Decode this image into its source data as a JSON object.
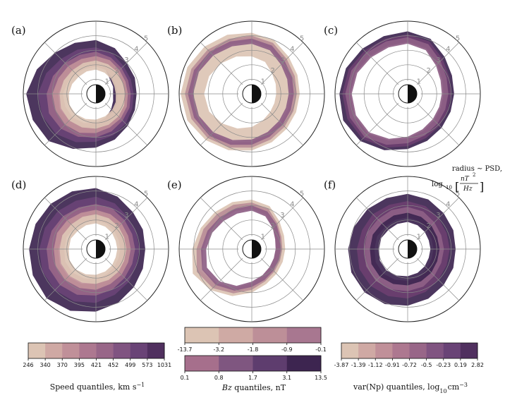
{
  "chart_data": [
    {
      "type": "polar-contour",
      "panel_label": "(a)",
      "colorbar": "speed",
      "rlim": [
        0,
        5
      ],
      "r_ticks": [
        "0",
        "1",
        "2",
        "3",
        "4",
        "5"
      ],
      "levels": [
        {
          "r": [
            3.7,
            3.4,
            3.0,
            2.9,
            2.8,
            2.9,
            3.1,
            3.4,
            3.7,
            4.1,
            4.6,
            4.7,
            4.8,
            4.4,
            4.0,
            3.8
          ],
          "width": 0.9
        },
        {
          "r": [
            3.2,
            3.0,
            2.7,
            2.6,
            2.6,
            2.7,
            2.9,
            3.1,
            3.3,
            3.6,
            3.9,
            4.0,
            4.0,
            3.7,
            3.4,
            3.3
          ],
          "width": 0.6
        },
        {
          "r": [
            2.9,
            2.7,
            2.5,
            2.4,
            2.4,
            2.5,
            2.6,
            2.8,
            3.0,
            3.2,
            3.4,
            3.5,
            3.4,
            3.2,
            3.0,
            2.9
          ],
          "width": 0.45
        },
        {
          "r": [
            2.6,
            2.5,
            2.3,
            2.2,
            2.2,
            2.3,
            2.4,
            2.5,
            2.7,
            2.9,
            3.0,
            3.0,
            3.0,
            2.8,
            2.7,
            2.6
          ],
          "width": 0.4
        },
        {
          "r": [
            2.3,
            2.2,
            2.1,
            2.0,
            2.0,
            2.1,
            2.2,
            2.3,
            2.4,
            2.5,
            2.6,
            2.6,
            2.5,
            2.4,
            2.3,
            2.3
          ],
          "width": 0.35
        }
      ]
    },
    {
      "type": "polar-contour",
      "panel_label": "(b)",
      "colorbar": "bz",
      "rlim": [
        0,
        5
      ],
      "r_ticks": [
        "0",
        "1",
        "2",
        "3",
        "4",
        "5"
      ],
      "levels": [
        {
          "r": [
            4.2,
            4.0,
            3.6,
            3.4,
            3.3,
            3.3,
            3.4,
            3.6,
            3.9,
            4.2,
            4.5,
            4.8,
            4.9,
            4.8,
            4.6,
            4.4
          ],
          "width": 0.9
        },
        {
          "r": [
            4.0,
            3.8,
            3.4,
            3.2,
            3.1,
            3.1,
            3.2,
            3.4,
            3.7,
            4.0,
            4.3,
            4.5,
            4.6,
            4.5,
            4.3,
            4.1
          ],
          "width": 0.22
        },
        {
          "r": [
            3.8,
            3.6,
            3.2,
            3.0,
            2.9,
            2.9,
            3.0,
            3.2,
            3.5,
            3.8,
            4.1,
            4.3,
            4.4,
            4.3,
            4.1,
            3.9
          ],
          "width": 0.2
        }
      ]
    },
    {
      "type": "polar-contour",
      "panel_label": "(c)",
      "colorbar": "var",
      "rlim": [
        0,
        5
      ],
      "r_ticks": [
        "0",
        "1",
        "2",
        "3",
        "4",
        "5"
      ],
      "levels": [
        {
          "r": [
            4.3,
            4.1,
            3.6,
            3.3,
            3.2,
            3.2,
            3.3,
            3.5,
            3.8,
            4.2,
            4.6,
            4.8,
            4.7,
            4.6,
            4.4,
            4.3
          ],
          "width": 0.35
        },
        {
          "r": [
            4.1,
            3.9,
            3.4,
            3.1,
            3.0,
            3.0,
            3.1,
            3.3,
            3.6,
            4.0,
            4.4,
            4.5,
            4.5,
            4.4,
            4.2,
            4.1
          ],
          "width": 0.3
        },
        {
          "r": [
            3.9,
            3.7,
            3.2,
            2.9,
            2.8,
            2.8,
            2.9,
            3.1,
            3.4,
            3.8,
            4.2,
            4.3,
            4.3,
            4.2,
            4.0,
            3.9
          ],
          "width": 0.25
        }
      ]
    },
    {
      "type": "polar-contour",
      "panel_label": "(d)",
      "colorbar": "speed",
      "rlim": [
        0,
        5
      ],
      "r_ticks": [
        "0",
        "1",
        "2",
        "3",
        "4",
        "5"
      ],
      "levels": [
        {
          "r": [
            4.2,
            3.9,
            3.6,
            3.5,
            3.4,
            3.5,
            3.7,
            4.0,
            4.3,
            4.6,
            4.8,
            4.7,
            4.6,
            4.5,
            4.4,
            4.3
          ],
          "width": 0.8
        },
        {
          "r": [
            3.6,
            3.4,
            3.1,
            3.0,
            3.0,
            3.0,
            3.2,
            3.4,
            3.7,
            3.9,
            4.0,
            4.0,
            3.9,
            3.8,
            3.7,
            3.6
          ],
          "width": 0.55
        },
        {
          "r": [
            3.1,
            3.0,
            2.8,
            2.7,
            2.7,
            2.7,
            2.8,
            3.0,
            3.2,
            3.4,
            3.5,
            3.5,
            3.4,
            3.3,
            3.2,
            3.1
          ],
          "width": 0.45
        },
        {
          "r": [
            2.7,
            2.6,
            2.5,
            2.4,
            2.4,
            2.4,
            2.5,
            2.6,
            2.8,
            2.9,
            3.0,
            3.0,
            2.9,
            2.9,
            2.8,
            2.7
          ],
          "width": 0.4
        },
        {
          "r": [
            2.4,
            2.3,
            2.2,
            2.1,
            2.1,
            2.1,
            2.2,
            2.3,
            2.4,
            2.5,
            2.6,
            2.6,
            2.5,
            2.5,
            2.4,
            2.4
          ],
          "width": 0.35
        }
      ]
    },
    {
      "type": "polar-contour",
      "panel_label": "(e)",
      "colorbar": "bz",
      "rlim": [
        0,
        5
      ],
      "r_ticks": [
        "0",
        "1",
        "2",
        "3",
        "4",
        "5"
      ],
      "levels": [
        {
          "r": [
            3.4,
            3.2,
            2.7,
            2.4,
            2.3,
            2.3,
            2.4,
            2.6,
            3.0,
            3.5,
            4.0,
            4.4,
            4.1,
            3.8,
            3.6,
            3.5
          ],
          "width": 0.3
        },
        {
          "r": [
            3.2,
            3.0,
            2.5,
            2.2,
            2.1,
            2.1,
            2.2,
            2.4,
            2.8,
            3.3,
            3.8,
            4.1,
            3.8,
            3.6,
            3.4,
            3.3
          ],
          "width": 0.25
        },
        {
          "r": [
            3.0,
            2.8,
            2.4,
            2.1,
            2.0,
            2.0,
            2.1,
            2.3,
            2.6,
            3.1,
            3.5,
            3.7,
            3.5,
            3.3,
            3.1,
            3.0
          ],
          "width": 0.2
        }
      ]
    },
    {
      "type": "polar-contour",
      "panel_label": "(f)",
      "colorbar": "var",
      "rlim": [
        0,
        5
      ],
      "r_ticks": [
        "0",
        "1",
        "2",
        "3",
        "4",
        "5"
      ],
      "levels": [
        {
          "r": [
            3.8,
            3.7,
            3.5,
            3.4,
            3.3,
            3.4,
            3.5,
            3.7,
            3.9,
            4.1,
            4.2,
            4.2,
            4.1,
            4.0,
            3.9,
            3.8
          ],
          "width": 0.7
        },
        {
          "r": [
            3.3,
            3.2,
            3.0,
            2.9,
            2.9,
            2.9,
            3.0,
            3.2,
            3.4,
            3.5,
            3.6,
            3.6,
            3.5,
            3.4,
            3.4,
            3.3
          ],
          "width": 0.5
        },
        {
          "r": [
            2.9,
            2.8,
            2.6,
            2.5,
            2.5,
            2.5,
            2.6,
            2.8,
            2.9,
            3.0,
            3.1,
            3.1,
            3.0,
            3.0,
            2.9,
            2.9
          ],
          "width": 0.4
        },
        {
          "r": [
            2.5,
            2.4,
            2.3,
            2.2,
            2.2,
            2.2,
            2.3,
            2.4,
            2.5,
            2.6,
            2.7,
            2.7,
            2.6,
            2.6,
            2.5,
            2.5
          ],
          "width": 0.35
        }
      ]
    }
  ],
  "colorbars": {
    "speed": {
      "ticks": [
        "246",
        "340",
        "370",
        "395",
        "421",
        "452",
        "499",
        "573",
        "1031"
      ],
      "colors": [
        "#dcc4b4",
        "#cfa9a4",
        "#c09099",
        "#ad7890",
        "#986688",
        "#805481",
        "#694376",
        "#50305f"
      ],
      "label": "Speed quantiles, km s",
      "label_sup": "−1"
    },
    "bz": {
      "top_ticks": [
        "-13.7",
        "-3.2",
        "-1.8",
        "-0.9",
        "-0.1"
      ],
      "top_colors": [
        "#dcc4b4",
        "#cfaaa4",
        "#bd8f98",
        "#a87790"
      ],
      "bottom_ticks": [
        "0.1",
        "0.8",
        "1.7",
        "3.1",
        "13.5"
      ],
      "bottom_colors": [
        "#a66f8c",
        "#7f5680",
        "#5e3d6e",
        "#3d2550"
      ],
      "label_var": "Bz",
      "label": " quantiles, nT"
    },
    "var": {
      "ticks": [
        "-3.87",
        "-1.39",
        "-1.12",
        "-0.91",
        "-0.72",
        "-0.5",
        "-0.23",
        "0.19",
        "2.82"
      ],
      "colors": [
        "#dcc4b4",
        "#cfa9a4",
        "#c09099",
        "#ad7890",
        "#986688",
        "#805481",
        "#694376",
        "#50305f"
      ],
      "label": "var(Np) quantiles, log",
      "label_sub": "10",
      "label_unit": "cm",
      "label_sup": "−3"
    }
  },
  "radius_note": {
    "line1": "radius ∼ PSD,",
    "log": "log",
    "sub": "10",
    "num": "nT",
    "num_sup": "2",
    "den": "Hz"
  },
  "colors": {
    "grid": "#8a8a8a",
    "fill_order_bz": [
      "#dcc4b4",
      "#b98d97",
      "#8e5f85"
    ],
    "fill_order_var": [
      "#3d2550",
      "#6b3f70",
      "#8e5f85"
    ],
    "fill_order_speed": [
      "#3d2550",
      "#694376",
      "#986688",
      "#c09099",
      "#dcc4b4"
    ]
  }
}
